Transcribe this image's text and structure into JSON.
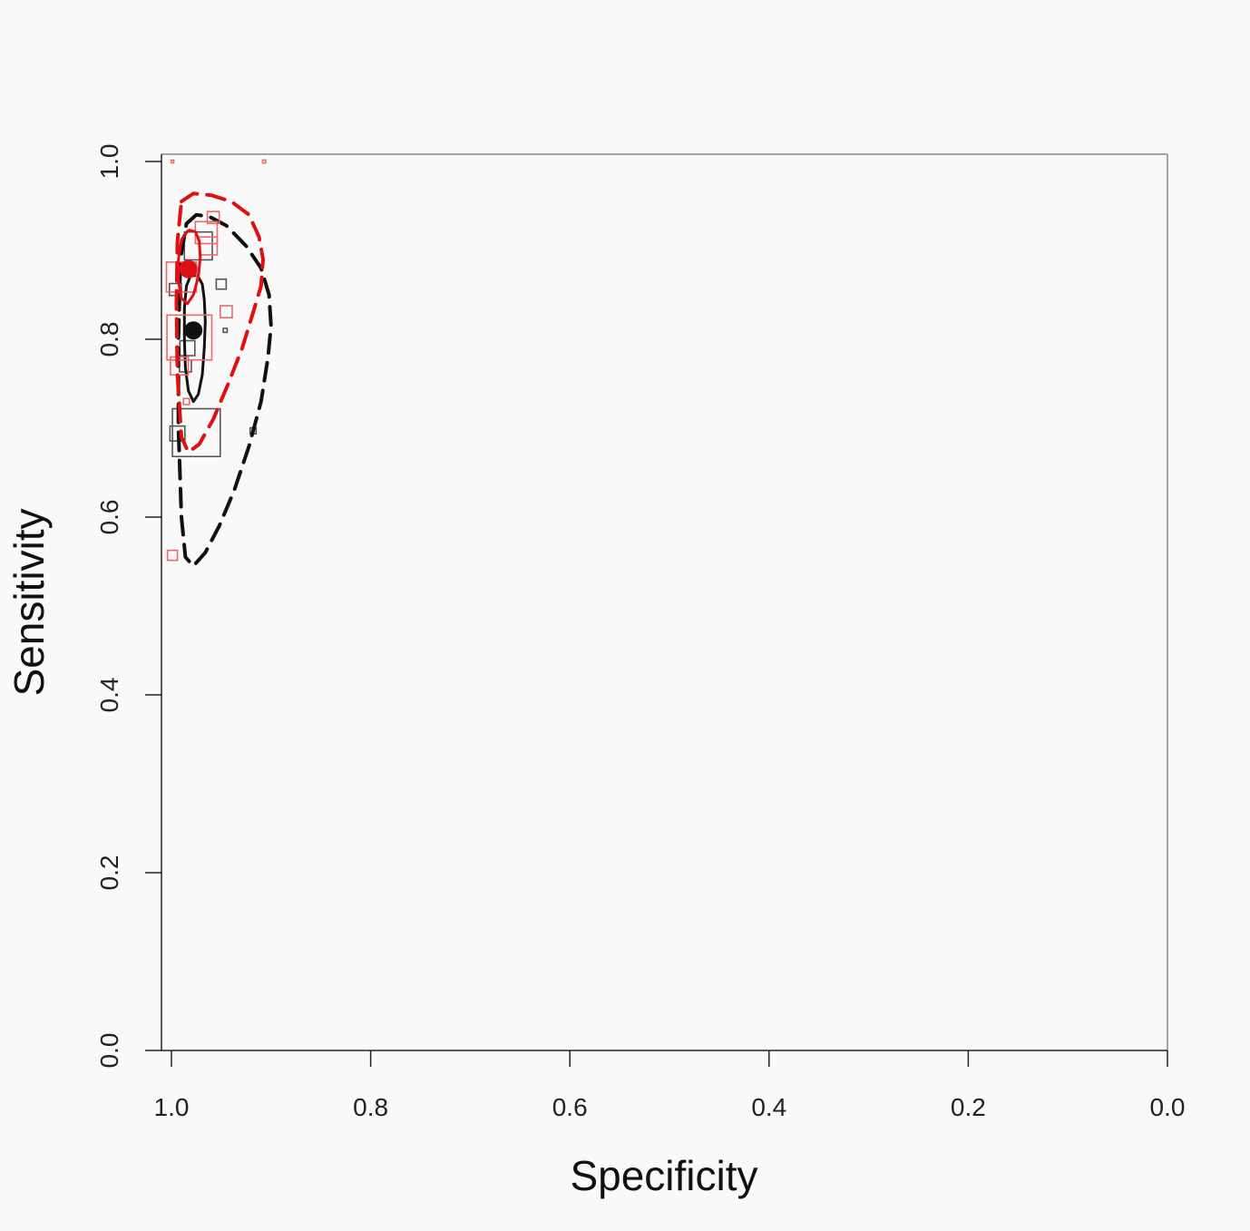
{
  "chart_data": {
    "type": "scatter",
    "xlabel": "Specificity",
    "ylabel": "Sensitivity",
    "xlim": [
      1.0,
      0.0
    ],
    "ylim": [
      0.0,
      1.0
    ],
    "x_reversed": true,
    "x_ticks": [
      "1.0",
      "0.8",
      "0.6",
      "0.4",
      "0.2",
      "0.0"
    ],
    "y_ticks": [
      "0.0",
      "0.2",
      "0.4",
      "0.6",
      "0.8",
      "1.0"
    ],
    "grid": false,
    "colors": {
      "black": "#111111",
      "red": "#e01010"
    },
    "series": [
      {
        "color": "black",
        "summary_point": {
          "x": 0.978,
          "y": 0.81
        },
        "studies": [
          {
            "x": 0.975,
            "y": 0.695,
            "w": 0.048
          },
          {
            "x": 0.994,
            "y": 0.694,
            "w": 0.015
          },
          {
            "x": 0.95,
            "y": 0.862,
            "w": 0.01
          },
          {
            "x": 0.918,
            "y": 0.697,
            "w": 0.006
          },
          {
            "x": 0.973,
            "y": 0.905,
            "w": 0.028
          },
          {
            "x": 0.996,
            "y": 0.856,
            "w": 0.012
          },
          {
            "x": 0.986,
            "y": 0.77,
            "w": 0.012
          },
          {
            "x": 0.984,
            "y": 0.79,
            "w": 0.015
          },
          {
            "x": 0.946,
            "y": 0.81,
            "w": 0.004
          }
        ],
        "confidence_region": [
          [
            0.981,
            0.871
          ],
          [
            0.974,
            0.872
          ],
          [
            0.969,
            0.862
          ],
          [
            0.967,
            0.845
          ],
          [
            0.966,
            0.82
          ],
          [
            0.967,
            0.79
          ],
          [
            0.969,
            0.76
          ],
          [
            0.973,
            0.738
          ],
          [
            0.978,
            0.73
          ],
          [
            0.983,
            0.742
          ],
          [
            0.986,
            0.768
          ],
          [
            0.987,
            0.8
          ],
          [
            0.987,
            0.835
          ],
          [
            0.985,
            0.86
          ],
          [
            0.981,
            0.871
          ]
        ],
        "prediction_region": [
          [
            0.985,
            0.93
          ],
          [
            0.975,
            0.94
          ],
          [
            0.962,
            0.938
          ],
          [
            0.945,
            0.928
          ],
          [
            0.925,
            0.905
          ],
          [
            0.91,
            0.88
          ],
          [
            0.902,
            0.85
          ],
          [
            0.9,
            0.815
          ],
          [
            0.903,
            0.78
          ],
          [
            0.91,
            0.73
          ],
          [
            0.922,
            0.68
          ],
          [
            0.937,
            0.63
          ],
          [
            0.952,
            0.59
          ],
          [
            0.966,
            0.56
          ],
          [
            0.978,
            0.545
          ],
          [
            0.986,
            0.555
          ],
          [
            0.99,
            0.6
          ],
          [
            0.993,
            0.7
          ],
          [
            0.993,
            0.8
          ],
          [
            0.991,
            0.89
          ],
          [
            0.985,
            0.93
          ]
        ]
      },
      {
        "color": "red",
        "summary_point": {
          "x": 0.983,
          "y": 0.879
        },
        "studies": [
          {
            "x": 0.958,
            "y": 0.937,
            "w": 0.012
          },
          {
            "x": 0.965,
            "y": 0.92,
            "w": 0.022
          },
          {
            "x": 0.963,
            "y": 0.905,
            "w": 0.018
          },
          {
            "x": 0.99,
            "y": 0.87,
            "w": 0.03
          },
          {
            "x": 0.945,
            "y": 0.831,
            "w": 0.012
          },
          {
            "x": 0.982,
            "y": 0.802,
            "w": 0.045
          },
          {
            "x": 0.992,
            "y": 0.77,
            "w": 0.018
          },
          {
            "x": 0.985,
            "y": 0.73,
            "w": 0.006
          },
          {
            "x": 0.999,
            "y": 0.557,
            "w": 0.01
          },
          {
            "x": 0.999,
            "y": 1.0,
            "w": 0.002
          },
          {
            "x": 0.907,
            "y": 1.0,
            "w": 0.003
          }
        ],
        "confidence_region": [
          [
            0.983,
            0.923
          ],
          [
            0.976,
            0.921
          ],
          [
            0.972,
            0.91
          ],
          [
            0.971,
            0.892
          ],
          [
            0.973,
            0.87
          ],
          [
            0.978,
            0.85
          ],
          [
            0.984,
            0.84
          ],
          [
            0.99,
            0.846
          ],
          [
            0.993,
            0.865
          ],
          [
            0.993,
            0.89
          ],
          [
            0.99,
            0.912
          ],
          [
            0.983,
            0.923
          ]
        ],
        "prediction_region": [
          [
            0.99,
            0.955
          ],
          [
            0.978,
            0.964
          ],
          [
            0.96,
            0.962
          ],
          [
            0.94,
            0.955
          ],
          [
            0.922,
            0.94
          ],
          [
            0.912,
            0.915
          ],
          [
            0.908,
            0.89
          ],
          [
            0.91,
            0.86
          ],
          [
            0.918,
            0.83
          ],
          [
            0.929,
            0.79
          ],
          [
            0.943,
            0.75
          ],
          [
            0.958,
            0.71
          ],
          [
            0.972,
            0.682
          ],
          [
            0.983,
            0.673
          ],
          [
            0.99,
            0.69
          ],
          [
            0.994,
            0.76
          ],
          [
            0.995,
            0.84
          ],
          [
            0.994,
            0.91
          ],
          [
            0.99,
            0.955
          ]
        ]
      }
    ]
  }
}
